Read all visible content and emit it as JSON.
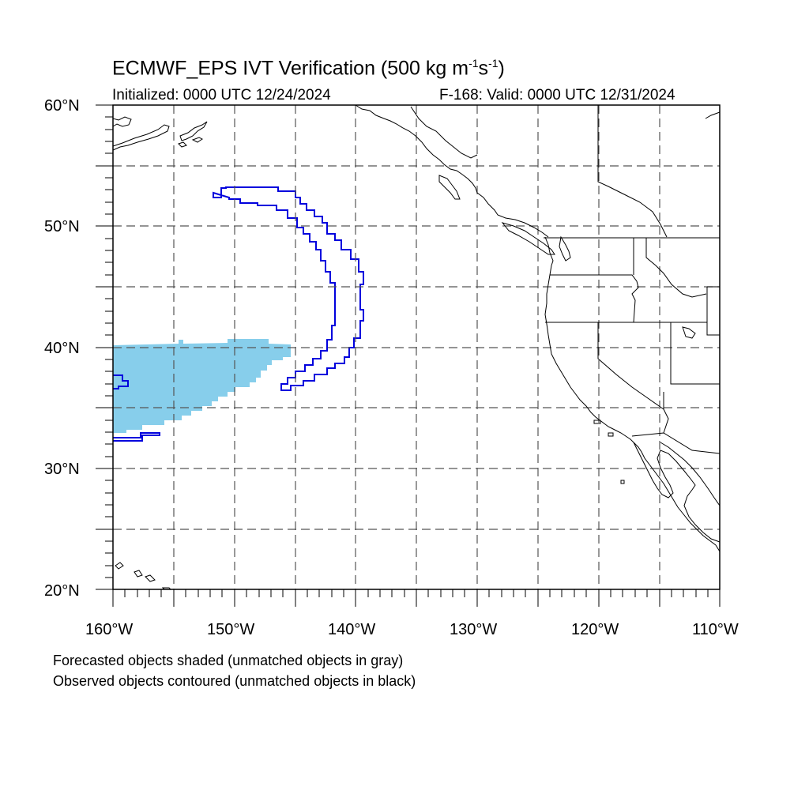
{
  "title": {
    "main": "ECMWF_EPS IVT Verification (500 kg m",
    "exp1": "-1",
    "mid": "s",
    "exp2": "-1",
    "end": ")"
  },
  "subtitle_left": "Initialized: 0000 UTC 12/24/2024",
  "subtitle_right": "F-168: Valid: 0000 UTC 12/31/2024",
  "lat_labels": [
    "60°N",
    "50°N",
    "40°N",
    "30°N",
    "20°N"
  ],
  "lon_labels": [
    "160°W",
    "150°W",
    "140°W",
    "130°W",
    "120°W",
    "110°W"
  ],
  "notes": [
    "Forecasted objects shaded (unmatched objects in gray)",
    "Observed objects contoured (unmatched objects in black)"
  ],
  "map": {
    "lon_range": [
      -160,
      -110
    ],
    "lat_range": [
      20,
      60
    ],
    "grid_interval_deg": 5,
    "forecast_object_color": "#87ceeb",
    "observed_contour_color": "#0000dd",
    "grid_style": "dashed"
  }
}
